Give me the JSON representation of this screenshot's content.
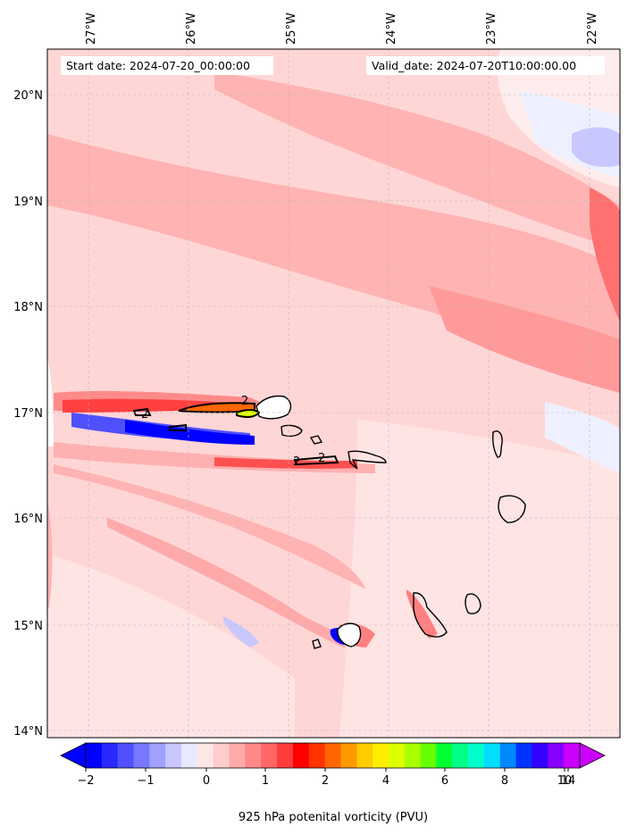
{
  "header": {
    "start_date": "Start date: 2024-07-20_00:00:00",
    "valid_date": "Valid_date: 2024-07-20T10:00:00.00"
  },
  "axes": {
    "lon_labels": [
      "27°W",
      "26°W",
      "25°W",
      "24°W",
      "23°W",
      "22°W"
    ],
    "lat_labels": [
      "20°N",
      "19°N",
      "18°N",
      "17°N",
      "16°N",
      "15°N",
      "14°N"
    ]
  },
  "colorbar": {
    "label": "925 hPa potenital vorticity (PVU)",
    "tick_labels": [
      "−2",
      "−1",
      "0",
      "1",
      "2",
      "4",
      "6",
      "8",
      "10",
      "14"
    ],
    "colors": [
      "#0000ff",
      "#2828ff",
      "#5050ff",
      "#7878ff",
      "#a0a0ff",
      "#c8c8ff",
      "#e8e8ff",
      "#ffe6e6",
      "#ffcccc",
      "#ffaaaa",
      "#ff8888",
      "#ff6666",
      "#ff3c3c",
      "#ff0000",
      "#ff3300",
      "#ff6600",
      "#ff9900",
      "#ffcc00",
      "#ffee00",
      "#ddff00",
      "#aaff00",
      "#66ff00",
      "#00ff33",
      "#00ff88",
      "#00ffcc",
      "#00ddff",
      "#0088ff",
      "#0033ff",
      "#3300ff",
      "#8800ff",
      "#cc00ff"
    ]
  },
  "contour_labels": [
    "2",
    "2",
    "2",
    "2"
  ]
}
